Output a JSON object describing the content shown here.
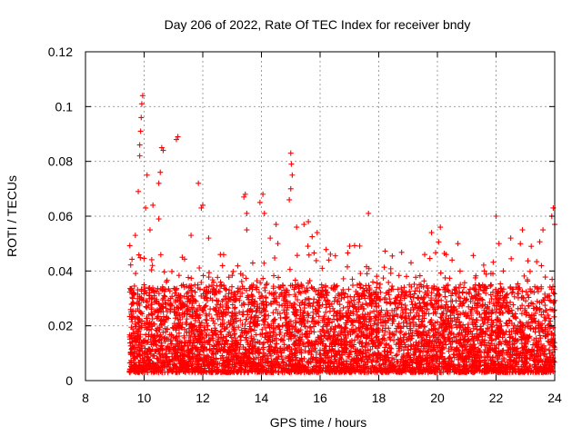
{
  "chart_data": {
    "type": "scatter",
    "title": "Day 206 of 2022, Rate Of TEC Index for receiver bndy",
    "xlabel": "GPS time / hours",
    "ylabel": "ROTI / TECUs",
    "xlim": [
      8,
      24
    ],
    "ylim": [
      0,
      0.12
    ],
    "x_ticks": [
      8,
      10,
      12,
      14,
      16,
      18,
      20,
      22,
      24
    ],
    "y_ticks": [
      0,
      0.02,
      0.04,
      0.06,
      0.08,
      0.1,
      0.12
    ],
    "x_tick_labels": [
      "8",
      "10",
      "12",
      "14",
      "16",
      "18",
      "20",
      "22",
      "24"
    ],
    "y_tick_labels": [
      "0",
      "0.02",
      "0.04",
      "0.06",
      "0.08",
      "0.1",
      "0.12"
    ],
    "grid": true,
    "marker": "+",
    "series": [
      {
        "name": "ROTI",
        "color": "#ff0000",
        "points": [
          [
            9.55,
            0.033
          ],
          [
            9.6,
            0.028
          ],
          [
            9.7,
            0.053
          ],
          [
            9.8,
            0.069
          ],
          [
            9.85,
            0.082
          ],
          [
            9.85,
            0.086
          ],
          [
            9.88,
            0.091
          ],
          [
            9.9,
            0.096
          ],
          [
            9.92,
            0.101
          ],
          [
            9.95,
            0.104
          ],
          [
            10.05,
            0.063
          ],
          [
            10.1,
            0.075
          ],
          [
            10.2,
            0.055
          ],
          [
            10.3,
            0.064
          ],
          [
            10.5,
            0.072
          ],
          [
            10.55,
            0.076
          ],
          [
            10.6,
            0.085
          ],
          [
            10.65,
            0.084
          ],
          [
            10.5,
            0.059
          ],
          [
            11.1,
            0.088
          ],
          [
            11.15,
            0.089
          ],
          [
            11.3,
            0.045
          ],
          [
            11.6,
            0.053
          ],
          [
            11.85,
            0.072
          ],
          [
            11.95,
            0.063
          ],
          [
            12.0,
            0.064
          ],
          [
            12.2,
            0.052
          ],
          [
            12.6,
            0.046
          ],
          [
            13.4,
            0.067
          ],
          [
            13.45,
            0.068
          ],
          [
            13.5,
            0.061
          ],
          [
            13.5,
            0.055
          ],
          [
            13.95,
            0.065
          ],
          [
            14.05,
            0.068
          ],
          [
            14.1,
            0.061
          ],
          [
            14.3,
            0.052
          ],
          [
            14.5,
            0.057
          ],
          [
            15.0,
            0.083
          ],
          [
            15.02,
            0.079
          ],
          [
            15.05,
            0.075
          ],
          [
            15.0,
            0.07
          ],
          [
            14.95,
            0.066
          ],
          [
            15.2,
            0.056
          ],
          [
            15.45,
            0.057
          ],
          [
            15.6,
            0.058
          ],
          [
            15.9,
            0.054
          ],
          [
            16.3,
            0.044
          ],
          [
            17.1,
            0.037
          ],
          [
            17.6,
            0.039
          ],
          [
            17.65,
            0.061
          ],
          [
            17.8,
            0.036
          ],
          [
            19.1,
            0.043
          ],
          [
            19.8,
            0.054
          ],
          [
            20.1,
            0.056
          ],
          [
            20.3,
            0.046
          ],
          [
            20.5,
            0.044
          ],
          [
            20.7,
            0.05
          ],
          [
            20.9,
            0.034
          ],
          [
            21.6,
            0.04
          ],
          [
            22.0,
            0.06
          ],
          [
            22.1,
            0.05
          ],
          [
            22.5,
            0.052
          ],
          [
            22.9,
            0.055
          ],
          [
            23.2,
            0.049
          ],
          [
            23.6,
            0.055
          ],
          [
            23.9,
            0.06
          ],
          [
            23.95,
            0.063
          ],
          [
            24.0,
            0.057
          ],
          [
            22.0,
            0.003
          ],
          [
            11.5,
            0.004
          ],
          [
            12.2,
            0.006
          ],
          [
            16.0,
            0.008
          ],
          [
            18.4,
            0.004
          ],
          [
            21.0,
            0.005
          ]
        ]
      }
    ],
    "dense_band": {
      "x_start": 9.5,
      "x_end": 24.0,
      "baseline_low": 0.003,
      "baseline_high": 0.035,
      "count": 5200
    }
  }
}
